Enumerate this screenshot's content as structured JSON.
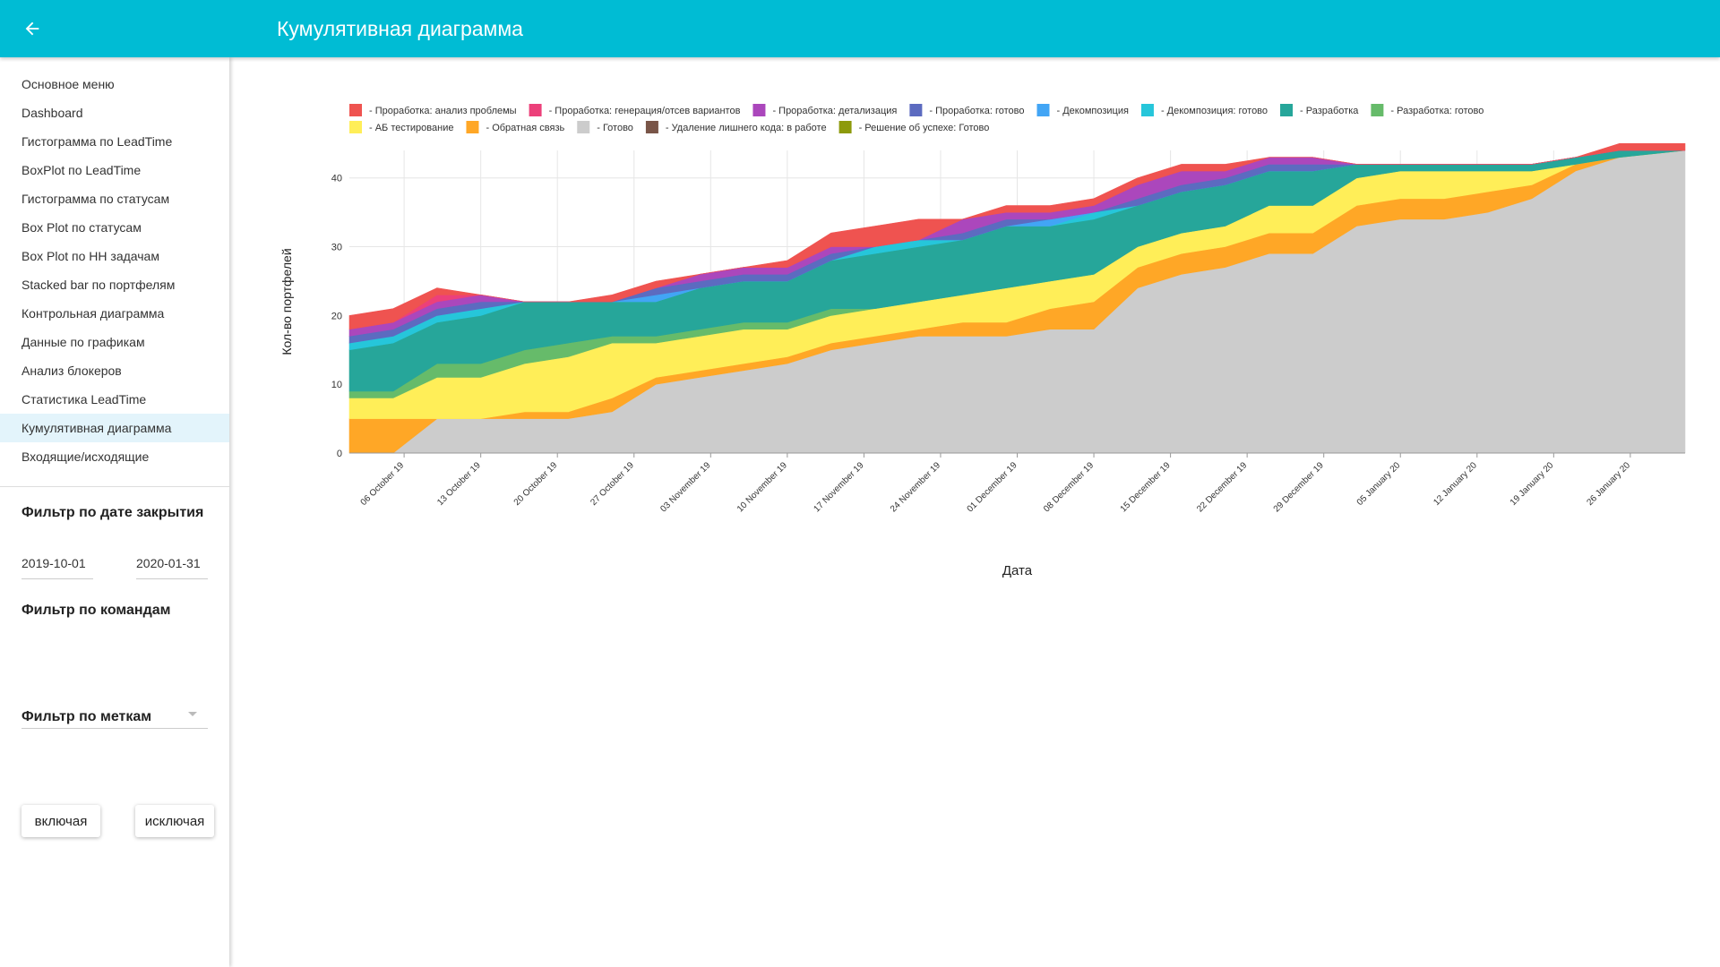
{
  "header": {
    "title": "Кумулятивная диаграмма",
    "back_icon": "arrow-left-icon",
    "color": "#00bcd4"
  },
  "sidebar": {
    "menu": [
      "Основное меню",
      "Dashboard",
      "Гистограмма по LeadTime",
      "BoxPlot по LeadTime",
      "Гистограмма по статусам",
      "Box Plot по статусам",
      "Box Plot по HH задачам",
      "Stacked bar по портфелям",
      "Контрольная диаграмма",
      "Данные по графикам",
      "Анализ блокеров",
      "Статистика LeadTime",
      "Кумулятивная диаграмма",
      "Входящие/исходящие"
    ],
    "active_index": 12,
    "date_filter": {
      "title": "Фильтр по дате закрытия",
      "from": "2019-10-01",
      "to": "2020-01-31"
    },
    "team_filter": {
      "title": "Фильтр по командам",
      "value": ""
    },
    "tag_filter": {
      "title": "Фильтр по меткам",
      "include_label": "включая",
      "exclude_label": "исключая"
    }
  },
  "chart_data": {
    "type": "area",
    "stacked": true,
    "xlabel": "Дата",
    "ylabel": "Кол-во портфелей",
    "ylim": [
      0,
      44
    ],
    "yticks": [
      0,
      10,
      20,
      30,
      40
    ],
    "grid": true,
    "legend_position": "top",
    "x": [
      "2019-10-01",
      "2019-10-05",
      "2019-10-09",
      "2019-10-13",
      "2019-10-17",
      "2019-10-21",
      "2019-10-25",
      "2019-10-29",
      "2019-11-02",
      "2019-11-06",
      "2019-11-10",
      "2019-11-14",
      "2019-11-18",
      "2019-11-22",
      "2019-11-26",
      "2019-11-30",
      "2019-12-04",
      "2019-12-08",
      "2019-12-12",
      "2019-12-16",
      "2019-12-20",
      "2019-12-24",
      "2019-12-28",
      "2020-01-01",
      "2020-01-05",
      "2020-01-09",
      "2020-01-13",
      "2020-01-17",
      "2020-01-21",
      "2020-01-25",
      "2020-01-31"
    ],
    "xticks": [
      "06 October 19",
      "13 October 19",
      "20 October 19",
      "27 October 19",
      "03 November 19",
      "10 November 19",
      "17 November 19",
      "24 November 19",
      "01 December 19",
      "08 December 19",
      "15 December 19",
      "22 December 19",
      "29 December 19",
      "05 January 20",
      "12 January 20",
      "19 January 20",
      "26 January 20"
    ],
    "series": [
      {
        "name": "- Готово",
        "color": "#cccccc",
        "values": [
          0,
          0,
          5,
          5,
          5,
          5,
          6,
          10,
          11,
          12,
          13,
          15,
          16,
          17,
          17,
          17,
          18,
          18,
          24,
          26,
          27,
          29,
          29,
          33,
          34,
          34,
          35,
          37,
          41,
          43,
          44
        ]
      },
      {
        "name": "- Обратная связь",
        "color": "#ffa726",
        "values": [
          5,
          5,
          0,
          0,
          1,
          1,
          2,
          1,
          1,
          1,
          1,
          1,
          1,
          1,
          2,
          2,
          3,
          4,
          3,
          3,
          3,
          3,
          3,
          3,
          3,
          3,
          3,
          2,
          1,
          0,
          0
        ]
      },
      {
        "name": "- АБ тестирование",
        "color": "#ffee58",
        "values": [
          3,
          3,
          6,
          6,
          7,
          8,
          8,
          5,
          5,
          5,
          4,
          4,
          4,
          4,
          4,
          5,
          4,
          4,
          3,
          3,
          3,
          4,
          4,
          4,
          4,
          4,
          3,
          2,
          0,
          0,
          0
        ]
      },
      {
        "name": "- Разработка: готово",
        "color": "#66bb6a",
        "values": [
          1,
          1,
          2,
          2,
          2,
          2,
          1,
          1,
          1,
          1,
          1,
          1,
          0,
          0,
          0,
          0,
          0,
          0,
          0,
          0,
          0,
          0,
          0,
          0,
          0,
          0,
          0,
          0,
          0,
          0,
          0
        ]
      },
      {
        "name": "- Разработка",
        "color": "#26a69a",
        "values": [
          6,
          7,
          6,
          7,
          7,
          6,
          5,
          5,
          6,
          6,
          6,
          7,
          8,
          8,
          8,
          9,
          8,
          8,
          6,
          6,
          6,
          5,
          5,
          2,
          1,
          1,
          1,
          1,
          1,
          1,
          0
        ]
      },
      {
        "name": "- Декомпозиция: готово",
        "color": "#26c6da",
        "values": [
          1,
          1,
          1,
          1,
          0,
          0,
          0,
          0,
          0,
          0,
          0,
          0,
          1,
          1,
          0,
          0,
          0,
          1,
          0,
          0,
          0,
          0,
          0,
          0,
          0,
          0,
          0,
          0,
          0,
          0,
          0
        ]
      },
      {
        "name": "- Декомпозиция",
        "color": "#42a5f5",
        "values": [
          0,
          0,
          0,
          0,
          0,
          0,
          0,
          1,
          0,
          0,
          0,
          0,
          0,
          0,
          0,
          0,
          1,
          0,
          0,
          0,
          0,
          0,
          0,
          0,
          0,
          0,
          0,
          0,
          0,
          0,
          0
        ]
      },
      {
        "name": "- Проработка: готово",
        "color": "#5c6bc0",
        "values": [
          1,
          1,
          1,
          1,
          0,
          0,
          0,
          1,
          1,
          1,
          1,
          1,
          0,
          0,
          1,
          1,
          0,
          0,
          1,
          1,
          1,
          1,
          1,
          0,
          0,
          0,
          0,
          0,
          0,
          0,
          0
        ]
      },
      {
        "name": "- Проработка: детализация",
        "color": "#ab47bc",
        "values": [
          1,
          1,
          1,
          1,
          0,
          0,
          0,
          0,
          1,
          1,
          1,
          1,
          0,
          0,
          2,
          1,
          1,
          1,
          2,
          2,
          1,
          1,
          1,
          0,
          0,
          0,
          0,
          0,
          0,
          0,
          0
        ]
      },
      {
        "name": "- Проработка: генерация/отсев вариантов",
        "color": "#ec407a",
        "values": [
          0,
          0,
          1,
          0,
          0,
          0,
          0,
          0,
          0,
          0,
          0,
          0,
          0,
          0,
          0,
          0,
          0,
          0,
          0,
          0,
          0,
          0,
          0,
          0,
          0,
          0,
          0,
          0,
          0,
          0,
          0
        ]
      },
      {
        "name": "- Проработка: анализ проблемы",
        "color": "#ef5350",
        "values": [
          2,
          2,
          1,
          0,
          0,
          0,
          1,
          1,
          0,
          0,
          1,
          2,
          3,
          3,
          0,
          1,
          1,
          1,
          1,
          1,
          1,
          0,
          0,
          0,
          0,
          0,
          0,
          0,
          0,
          1,
          1
        ]
      },
      {
        "name": "- Удаление лишнего кода: в работе",
        "color": "#795548",
        "values": [
          0,
          0,
          0,
          0,
          0,
          0,
          0,
          0,
          0,
          0,
          0,
          0,
          0,
          0,
          0,
          0,
          0,
          0,
          0,
          0,
          0,
          0,
          0,
          0,
          0,
          0,
          0,
          0,
          0,
          0,
          0
        ]
      },
      {
        "name": "- Решение об успехе: Готово",
        "color": "#8d9a0b",
        "values": [
          0,
          0,
          0,
          0,
          0,
          0,
          0,
          0,
          0,
          0,
          0,
          0,
          0,
          0,
          0,
          0,
          0,
          0,
          0,
          0,
          0,
          0,
          0,
          0,
          0,
          0,
          0,
          0,
          0,
          0,
          0
        ]
      }
    ],
    "legend_order": [
      "- Проработка: анализ проблемы",
      "- Проработка: генерация/отсев вариантов",
      "- Проработка: детализация",
      "- Проработка: готово",
      "- Декомпозиция",
      "- Декомпозиция: готово",
      "- Разработка",
      "- Разработка: готово",
      "- АБ тестирование",
      "- Обратная связь",
      "- Готово",
      "- Удаление лишнего кода: в работе",
      "- Решение об успехе: Готово"
    ]
  }
}
